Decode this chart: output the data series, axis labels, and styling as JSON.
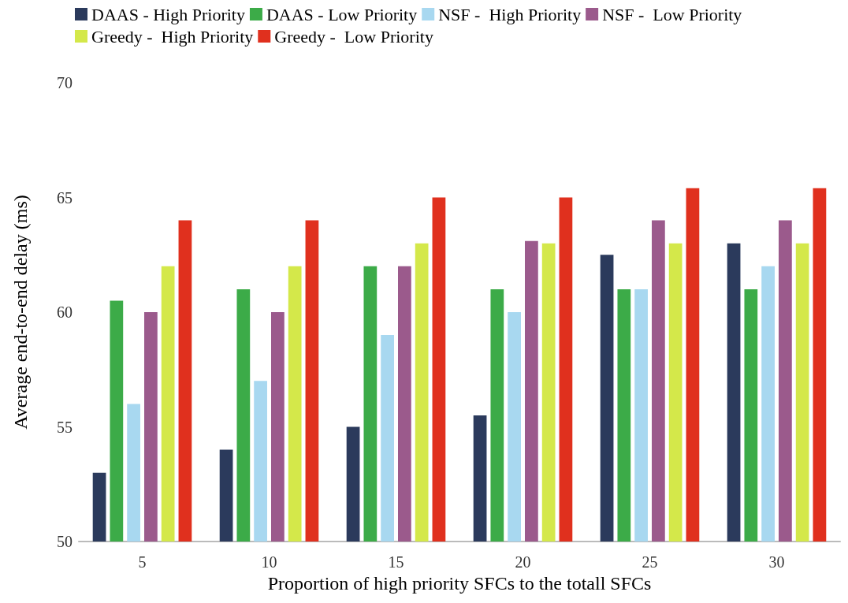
{
  "chart_data": {
    "type": "bar",
    "xlabel": "Proportion of high priority SFCs to the totall SFCs",
    "ylabel": "Average end-to-end delay (ms)",
    "categories": [
      "5",
      "10",
      "15",
      "20",
      "25",
      "30"
    ],
    "series": [
      {
        "name": "DAAS - High Priority",
        "color": "#2b3a5c",
        "values": [
          53,
          54,
          55,
          55.5,
          62.5,
          63
        ]
      },
      {
        "name": "DAAS - Low Priority",
        "color": "#3cab48",
        "values": [
          60.5,
          61,
          62,
          61,
          61,
          61
        ]
      },
      {
        "name": "NSF -  High Priority",
        "color": "#a8d8f0",
        "values": [
          56,
          57,
          59,
          60,
          61,
          62
        ]
      },
      {
        "name": "NSF -  Low Priority",
        "color": "#9b5a8c",
        "values": [
          60,
          60,
          62,
          63.1,
          64,
          64
        ]
      },
      {
        "name": "Greedy -  High Priority",
        "color": "#d4e84a",
        "values": [
          62,
          62,
          63,
          63,
          63,
          63
        ]
      },
      {
        "name": "Greedy -  Low Priority",
        "color": "#e0301e",
        "values": [
          64,
          64,
          65,
          65,
          65.4,
          65.4
        ]
      }
    ],
    "ylim": [
      50,
      70
    ],
    "yticks": [
      50,
      55,
      60,
      65,
      70
    ],
    "grid": false,
    "legend": "top"
  }
}
